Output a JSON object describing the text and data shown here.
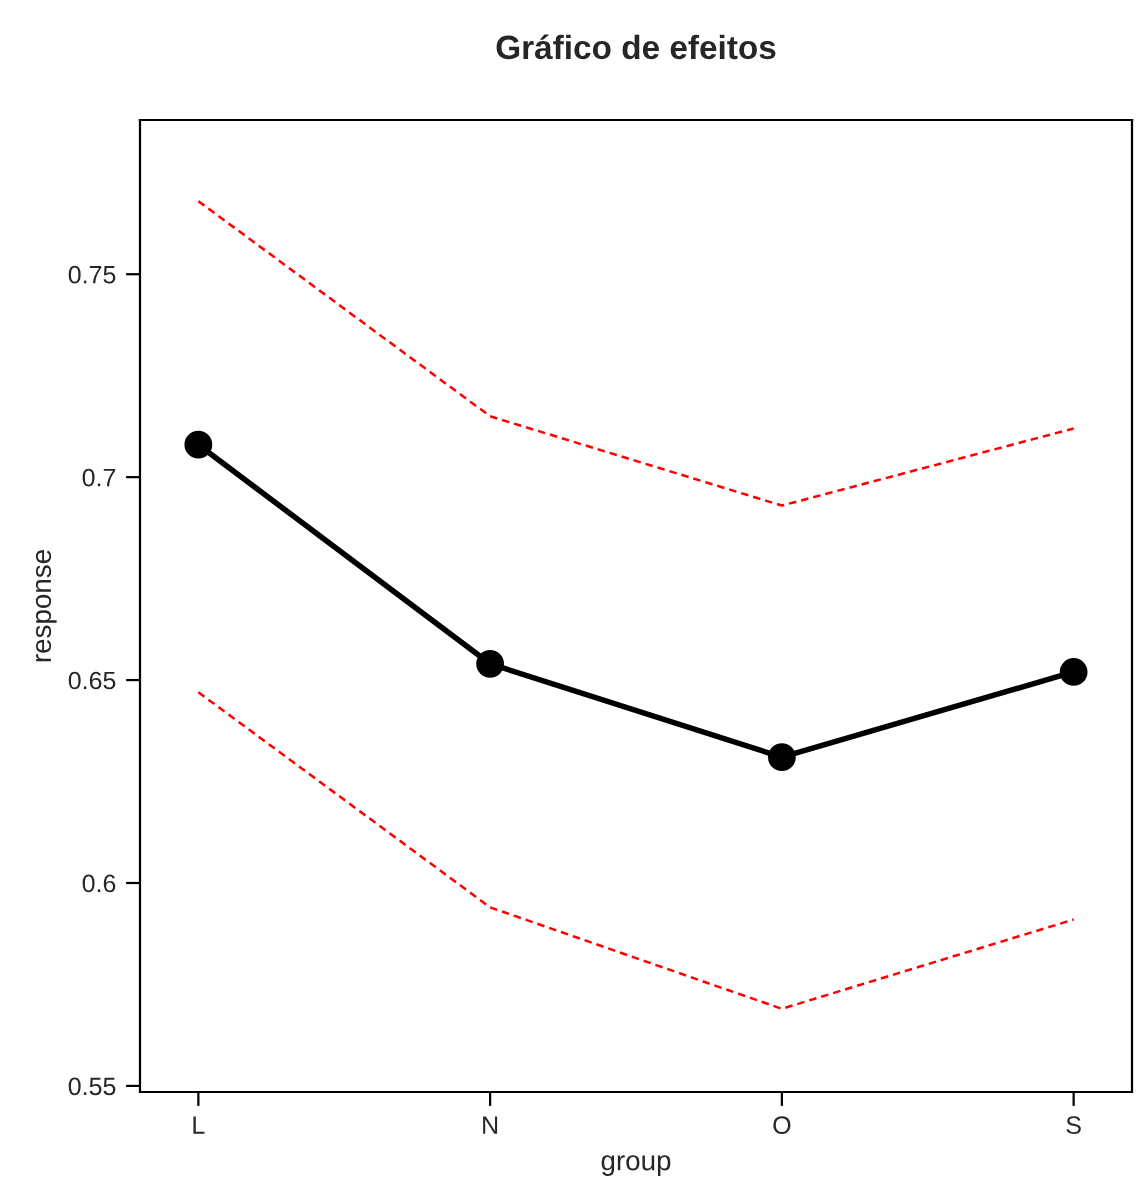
{
  "chart_data": {
    "type": "line",
    "title": "Gráfico de efeitos",
    "xlabel": "group",
    "ylabel": "response",
    "categories": [
      "L",
      "N",
      "O",
      "S"
    ],
    "series": [
      {
        "color": "#ff0000",
        "values": [
          0.768,
          0.715,
          0.693,
          0.712
        ],
        "line_style": "dashed",
        "marker": "none"
      },
      {
        "color": "#ff0000",
        "values": [
          0.647,
          0.594,
          0.569,
          0.591
        ],
        "line_style": "dashed",
        "marker": "none"
      },
      {
        "color": "#000000",
        "values": [
          0.708,
          0.654,
          0.631,
          0.652
        ],
        "line_style": "solid",
        "marker": "circle"
      }
    ],
    "ylim": [
      0.5485,
      0.788
    ],
    "yticks": [
      0.55,
      0.6,
      0.65,
      0.7,
      0.75
    ],
    "grid": false,
    "legend": false
  }
}
